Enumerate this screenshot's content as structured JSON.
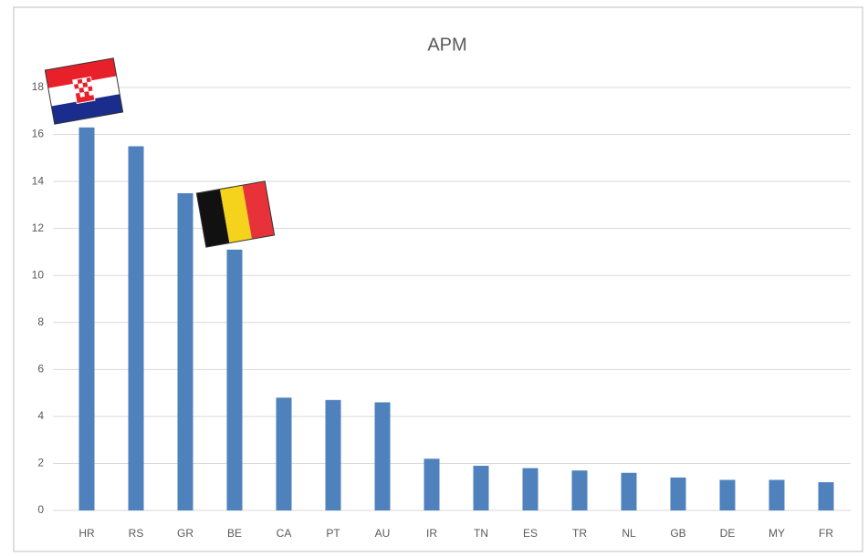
{
  "chart_data": {
    "type": "bar",
    "title": "APM",
    "categories": [
      "HR",
      "RS",
      "GR",
      "BE",
      "CA",
      "PT",
      "AU",
      "IR",
      "TN",
      "ES",
      "TR",
      "NL",
      "GB",
      "DE",
      "MY",
      "FR"
    ],
    "values": [
      16.3,
      15.5,
      13.5,
      11.1,
      4.8,
      4.7,
      4.6,
      2.2,
      1.9,
      1.8,
      1.7,
      1.6,
      1.4,
      1.3,
      1.3,
      1.2
    ],
    "color": "#4f81bd",
    "ylim": [
      0,
      18
    ],
    "yticks": [
      0,
      2,
      4,
      6,
      8,
      10,
      12,
      14,
      16,
      18
    ],
    "grid": true
  }
}
